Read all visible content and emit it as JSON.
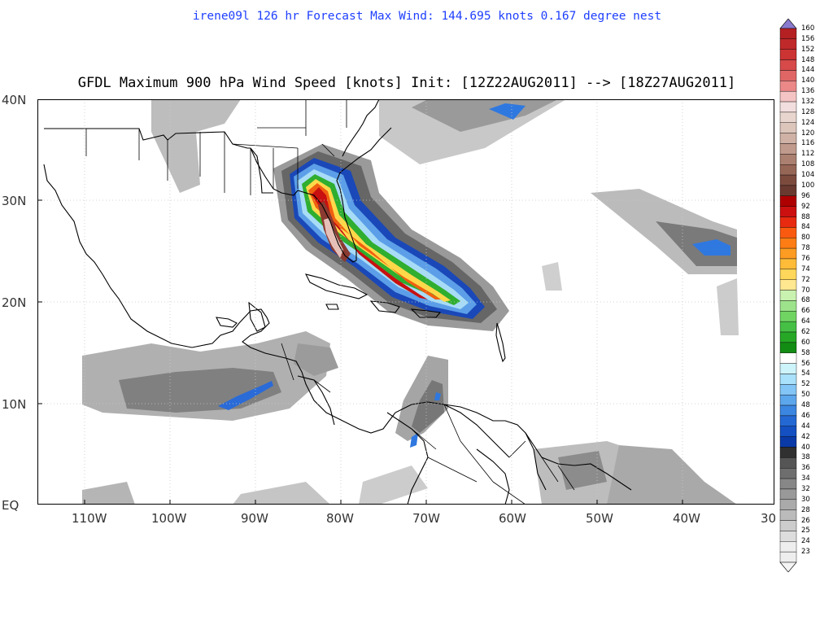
{
  "header": {
    "subtitle": "irene09l 126 hr Forecast Max Wind: 144.695 knots 0.167 degree nest",
    "title": "GFDL Maximum 900 hPa Wind Speed [knots] Init: [12Z22AUG2011] --> [18Z27AUG2011]"
  },
  "map": {
    "lat_labels": [
      "40N",
      "30N",
      "20N",
      "10N",
      "EQ"
    ],
    "lon_labels": [
      "110W",
      "100W",
      "90W",
      "80W",
      "70W",
      "60W",
      "50W",
      "40W",
      "30"
    ],
    "ocean_color": "#ffffff",
    "land_outline_color": "#000000"
  },
  "colorbar": {
    "levels": [
      "160",
      "156",
      "152",
      "148",
      "144",
      "140",
      "136",
      "132",
      "128",
      "124",
      "120",
      "116",
      "112",
      "108",
      "104",
      "100",
      "96",
      "92",
      "88",
      "84",
      "80",
      "78",
      "76",
      "74",
      "72",
      "70",
      "68",
      "66",
      "64",
      "62",
      "60",
      "58",
      "56",
      "54",
      "52",
      "50",
      "48",
      "46",
      "44",
      "42",
      "40",
      "38",
      "36",
      "34",
      "32",
      "30",
      "28",
      "26",
      "25",
      "24",
      "23"
    ],
    "colors": [
      "#8a7acd",
      "#b52023",
      "#c0292a",
      "#cc3333",
      "#d64a4a",
      "#e06666",
      "#eb8888",
      "#f4c4c4",
      "#f2dede",
      "#e8d6ce",
      "#dcc5bb",
      "#cfb1a5",
      "#c09a8c",
      "#ab8070",
      "#966656",
      "#7d4b3e",
      "#6a3a30",
      "#ae0000",
      "#cc1010",
      "#e82a10",
      "#fa5a10",
      "#fd7d14",
      "#fd9c22",
      "#ffbc38",
      "#ffd75a",
      "#ffe890",
      "#c9f1b0",
      "#9de38c",
      "#70d462",
      "#45c045",
      "#26a826",
      "#128c12",
      "#ffffff",
      "#cdf3fb",
      "#a9e0fb",
      "#82c5f6",
      "#5ca6ec",
      "#3b86e0",
      "#2468d4",
      "#1450c2",
      "#0a3aa8",
      "#303030",
      "#555555",
      "#6e6e6e",
      "#878787",
      "#999999",
      "#aaaaaa",
      "#bbbbbb",
      "#cccccc",
      "#dddddd",
      "#eeeeee"
    ]
  }
}
